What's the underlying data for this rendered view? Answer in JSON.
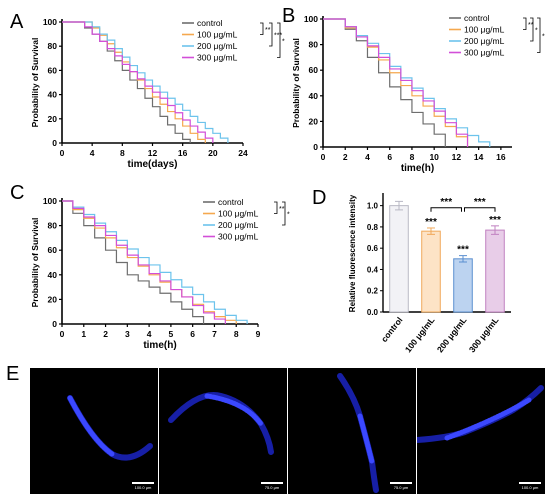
{
  "panels": {
    "A": "A",
    "B": "B",
    "C": "C",
    "D": "D",
    "E": "E"
  },
  "legend_entries": [
    "control",
    "100 μg/mL",
    "200 μg/mL",
    "300 μg/mL"
  ],
  "series_colors": {
    "control": "#6e6e6e",
    "100": "#f5a84e",
    "200": "#6cc3ec",
    "300": "#d24fd8"
  },
  "chart_data": [
    {
      "panel": "A",
      "type": "line",
      "step": true,
      "xlabel": "time(days)",
      "ylabel": "Probability of Survival",
      "xlim": [
        0,
        24
      ],
      "ylim": [
        0,
        100
      ],
      "xticks": [
        0,
        4,
        8,
        12,
        16,
        20,
        24
      ],
      "yticks": [
        0,
        20,
        40,
        60,
        80,
        100
      ],
      "series": [
        {
          "name": "control",
          "x": [
            0,
            3,
            4,
            5,
            6,
            7,
            8,
            9,
            10,
            11,
            12,
            13,
            14,
            15,
            16,
            17
          ],
          "y": [
            100,
            95,
            90,
            84,
            76,
            68,
            60,
            52,
            45,
            37,
            30,
            22,
            15,
            8,
            3,
            0
          ]
        },
        {
          "name": "100 μg/mL",
          "x": [
            0,
            4,
            5,
            6,
            7,
            8,
            9,
            10,
            11,
            12,
            13,
            14,
            15,
            16,
            17,
            18,
            19
          ],
          "y": [
            100,
            95,
            89,
            82,
            75,
            67,
            59,
            52,
            45,
            38,
            32,
            26,
            20,
            14,
            8,
            3,
            0
          ]
        },
        {
          "name": "200 μg/mL",
          "x": [
            0,
            4,
            5,
            6,
            7,
            8,
            9,
            10,
            11,
            12,
            13,
            14,
            15,
            16,
            17,
            18,
            19,
            20,
            21,
            22
          ],
          "y": [
            100,
            96,
            90,
            85,
            78,
            71,
            64,
            58,
            52,
            47,
            42,
            37,
            32,
            27,
            22,
            17,
            12,
            8,
            4,
            0
          ]
        },
        {
          "name": "300 μg/mL",
          "x": [
            0,
            3,
            4,
            5,
            6,
            7,
            8,
            9,
            10,
            11,
            12,
            13,
            14,
            15,
            16,
            17,
            18,
            19,
            20
          ],
          "y": [
            100,
            96,
            90,
            84,
            78,
            72,
            65,
            59,
            53,
            47,
            42,
            37,
            31,
            25,
            19,
            14,
            9,
            4,
            0
          ]
        }
      ],
      "significance": [
        "**",
        "***",
        "*"
      ]
    },
    {
      "panel": "B",
      "type": "line",
      "step": true,
      "xlabel": "time(h)",
      "ylabel": "Probability of Survival",
      "xlim": [
        0,
        17
      ],
      "ylim": [
        0,
        100
      ],
      "xticks": [
        0,
        2,
        4,
        6,
        8,
        10,
        12,
        14,
        16
      ],
      "yticks": [
        0,
        20,
        40,
        60,
        80,
        100
      ],
      "series": [
        {
          "name": "control",
          "x": [
            0,
            2,
            3,
            4,
            5,
            6,
            7,
            8,
            9,
            10,
            11
          ],
          "y": [
            100,
            92,
            83,
            70,
            58,
            47,
            37,
            27,
            18,
            10,
            0
          ]
        },
        {
          "name": "100 μg/mL",
          "x": [
            0,
            2,
            3,
            4,
            5,
            6,
            7,
            8,
            9,
            10,
            11,
            12,
            13
          ],
          "y": [
            100,
            93,
            86,
            78,
            68,
            58,
            48,
            40,
            32,
            24,
            16,
            8,
            0
          ]
        },
        {
          "name": "200 μg/mL",
          "x": [
            0,
            2,
            3,
            4,
            5,
            6,
            7,
            8,
            9,
            10,
            11,
            12,
            13,
            14,
            15
          ],
          "y": [
            100,
            94,
            87,
            81,
            73,
            63,
            54,
            46,
            38,
            30,
            22,
            15,
            9,
            4,
            0
          ]
        },
        {
          "name": "300 μg/mL",
          "x": [
            0,
            2,
            3,
            4,
            5,
            6,
            7,
            8,
            9,
            10,
            11,
            12,
            13
          ],
          "y": [
            100,
            94,
            86,
            79,
            70,
            61,
            52,
            44,
            36,
            28,
            19,
            10,
            0
          ]
        }
      ],
      "significance": [
        "**",
        "*",
        "*"
      ]
    },
    {
      "panel": "C",
      "type": "line",
      "step": true,
      "xlabel": "time(h)",
      "ylabel": "Probability of Survival",
      "xlim": [
        0,
        9
      ],
      "ylim": [
        0,
        100
      ],
      "xticks": [
        0,
        1,
        2,
        3,
        4,
        5,
        6,
        7,
        8,
        9
      ],
      "yticks": [
        0,
        20,
        40,
        60,
        80,
        100
      ],
      "series": [
        {
          "name": "control",
          "x": [
            0,
            0.5,
            1,
            1.5,
            2,
            2.5,
            3,
            3.5,
            4,
            4.5,
            5,
            5.5,
            6,
            6.5
          ],
          "y": [
            100,
            90,
            80,
            70,
            60,
            50,
            40,
            35,
            30,
            25,
            18,
            12,
            6,
            0
          ]
        },
        {
          "name": "100 μg/mL",
          "x": [
            0,
            0.5,
            1,
            1.5,
            2,
            2.5,
            3,
            3.5,
            4,
            4.5,
            5,
            5.5,
            6,
            6.5,
            7,
            7.5,
            8
          ],
          "y": [
            100,
            93,
            86,
            78,
            70,
            62,
            54,
            47,
            40,
            34,
            28,
            22,
            16,
            10,
            6,
            3,
            0
          ]
        },
        {
          "name": "200 μg/mL",
          "x": [
            0,
            0.5,
            1,
            1.5,
            2,
            2.5,
            3,
            3.5,
            4,
            4.5,
            5,
            5.5,
            6,
            6.5,
            7,
            7.5,
            8,
            8.5
          ],
          "y": [
            100,
            95,
            89,
            82,
            75,
            68,
            61,
            54,
            48,
            42,
            36,
            30,
            24,
            18,
            12,
            7,
            3,
            0
          ]
        },
        {
          "name": "300 μg/mL",
          "x": [
            0,
            0.5,
            1,
            1.5,
            2,
            2.5,
            3,
            3.5,
            4,
            4.5,
            5,
            5.5,
            6,
            6.5,
            7,
            7.5
          ],
          "y": [
            100,
            94,
            87,
            80,
            72,
            64,
            56,
            48,
            41,
            35,
            28,
            22,
            15,
            9,
            4,
            0
          ]
        }
      ],
      "significance": [
        "**",
        "*"
      ]
    },
    {
      "panel": "D",
      "type": "bar",
      "ylabel": "Relative fluorescence intensity",
      "ylim": [
        0,
        1.1
      ],
      "yticks": [
        "0.0",
        "0.2",
        "0.4",
        "0.6",
        "0.8",
        "1.0"
      ],
      "categories": [
        "control",
        "100 μg/mL",
        "200 μg/mL",
        "300 μg/mL"
      ],
      "values": [
        1.0,
        0.76,
        0.5,
        0.77
      ],
      "errors": [
        0.04,
        0.03,
        0.03,
        0.04
      ],
      "bar_fills": [
        "#f2f2f6",
        "#fde3c6",
        "#bcd3f0",
        "#e8cde8"
      ],
      "bar_strokes": [
        "#b8b8c4",
        "#f0a85a",
        "#5a8fd0",
        "#c080c0"
      ],
      "bar_labels": [
        "",
        "***",
        "***",
        "***"
      ],
      "comparisons": [
        "***",
        "***"
      ]
    }
  ],
  "micrographs": [
    {
      "scale": "100.0 μm"
    },
    {
      "scale": "75.0 μm"
    },
    {
      "scale": "75.0 μm"
    },
    {
      "scale": "100.0 μm"
    }
  ]
}
